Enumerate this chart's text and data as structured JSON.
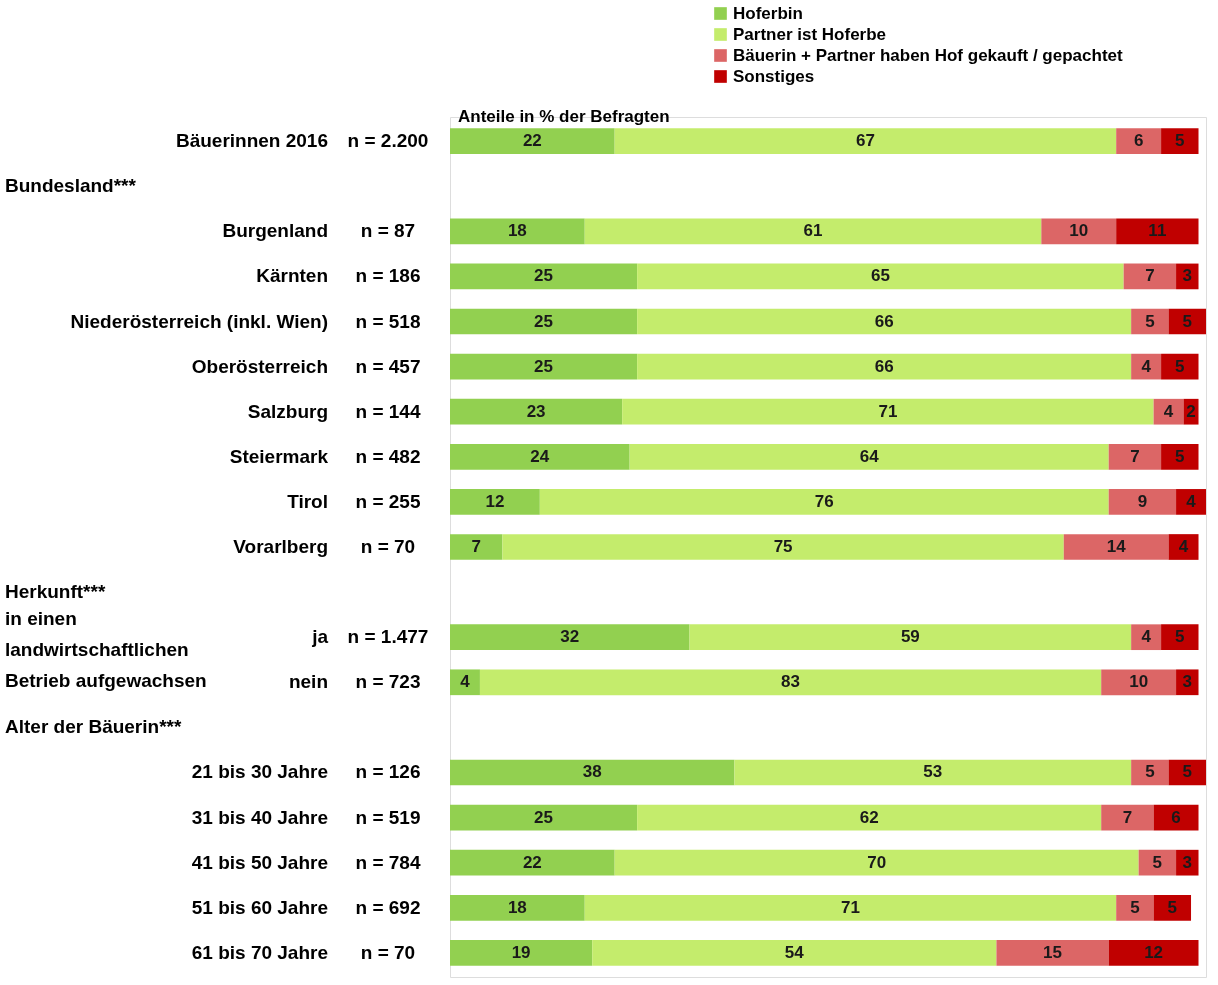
{
  "chart_data": {
    "type": "bar",
    "orientation": "horizontal",
    "stacked": true,
    "data_labels": true,
    "legend": "top right",
    "categories": [
      "Bäuerinnen 2016",
      null,
      "Burgenland",
      "Kärnten",
      "Niederösterreich (inkl. Wien)",
      "Oberösterreich",
      "Salzburg",
      "Steiermark",
      "Tirol",
      "Vorarlberg",
      null,
      "ja",
      "nein",
      null,
      "21 bis 30 Jahre",
      "31 bis 40 Jahre",
      "41 bis 50 Jahre",
      "51 bis 60 Jahre",
      "61 bis 70 Jahre"
    ],
    "series": [
      {
        "name": "Hoferbin",
        "color": "#92d050",
        "values": [
          22,
          null,
          18,
          25,
          25,
          25,
          23,
          24,
          12,
          7,
          null,
          32,
          4,
          null,
          38,
          25,
          22,
          18,
          19
        ]
      },
      {
        "name": "Partner ist Hoferbe",
        "color": "#c4ec6c",
        "values": [
          67,
          null,
          61,
          65,
          66,
          66,
          71,
          64,
          76,
          75,
          null,
          59,
          83,
          null,
          53,
          62,
          70,
          71,
          54
        ]
      },
      {
        "name": "Bäuerin + Partner haben Hof gekauft / gepachtet",
        "color": "#dc6666",
        "values": [
          6,
          null,
          10,
          7,
          5,
          4,
          4,
          7,
          9,
          14,
          null,
          4,
          10,
          null,
          5,
          7,
          5,
          5,
          15
        ]
      },
      {
        "name": "Sonstiges",
        "color": "#c00000",
        "values": [
          5,
          null,
          11,
          3,
          5,
          5,
          2,
          5,
          4,
          4,
          null,
          5,
          3,
          null,
          5,
          6,
          3,
          5,
          12
        ]
      }
    ],
    "annotations": [
      "Anteile in % der Befragten",
      "Bundesland***",
      "Herkunft***",
      "Alter der Bäuerin***",
      "in einen landwirtschaftlichen Betrieb aufgewachsen",
      "n = 2.200",
      "n = 87",
      "n = 186",
      "n = 518",
      "n = 457",
      "n = 144",
      "n = 482",
      "n = 255",
      "n = 70",
      "n = 1.477",
      "n = 723",
      "n = 126",
      "n = 519",
      "n = 784",
      "n = 692",
      "n = 70"
    ]
  }
}
